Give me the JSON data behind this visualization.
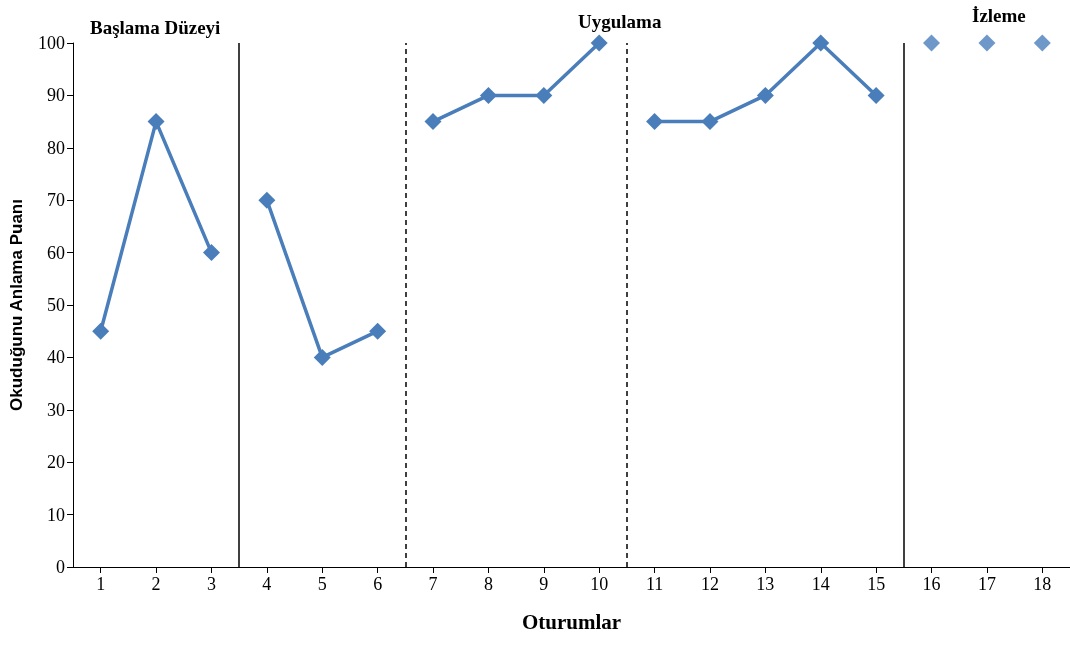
{
  "chart_data": {
    "type": "line",
    "xlabel": "Oturumlar",
    "ylabel": "Okuduğunu Anlama Puanı",
    "annotations": [
      "Başlama Düzeyi",
      "Uygulama",
      "İzleme"
    ],
    "series": [
      {
        "color": "#4a7ebb",
        "x": [
          1,
          2,
          3
        ],
        "values": [
          45,
          85,
          60
        ]
      },
      {
        "color": "#4a7ebb",
        "x": [
          4,
          5,
          6
        ],
        "values": [
          70,
          40,
          45
        ]
      },
      {
        "color": "#4a7ebb",
        "x": [
          7,
          8,
          9,
          10
        ],
        "values": [
          85,
          90,
          90,
          100
        ]
      },
      {
        "color": "#4a7ebb",
        "x": [
          11,
          12,
          13,
          14,
          15
        ],
        "values": [
          85,
          85,
          90,
          100,
          90
        ]
      },
      {
        "type": "scatter",
        "color": "#4a7ebb",
        "x": [
          16,
          17,
          18
        ],
        "values": [
          100,
          100,
          100
        ]
      }
    ],
    "xlim": [
      0.5,
      18.5
    ],
    "xticks": [
      1,
      2,
      3,
      4,
      5,
      6,
      7,
      8,
      9,
      10,
      11,
      12,
      13,
      14,
      15,
      16,
      17,
      18
    ],
    "ylim": [
      0,
      100
    ],
    "yticks": [
      0,
      10,
      20,
      30,
      40,
      50,
      60,
      70,
      80,
      90,
      100
    ],
    "ref_lines": [
      {
        "axis": "x",
        "value": 3.5,
        "color": "#000000",
        "line_style": "solid"
      },
      {
        "axis": "x",
        "value": 6.5,
        "color": "#000000",
        "line_style": "dashed"
      },
      {
        "axis": "x",
        "value": 10.5,
        "color": "#000000",
        "line_style": "dashed"
      },
      {
        "axis": "x",
        "value": 15.5,
        "color": "#000000",
        "line_style": "solid"
      }
    ],
    "marker": "diamond",
    "grid": false
  }
}
